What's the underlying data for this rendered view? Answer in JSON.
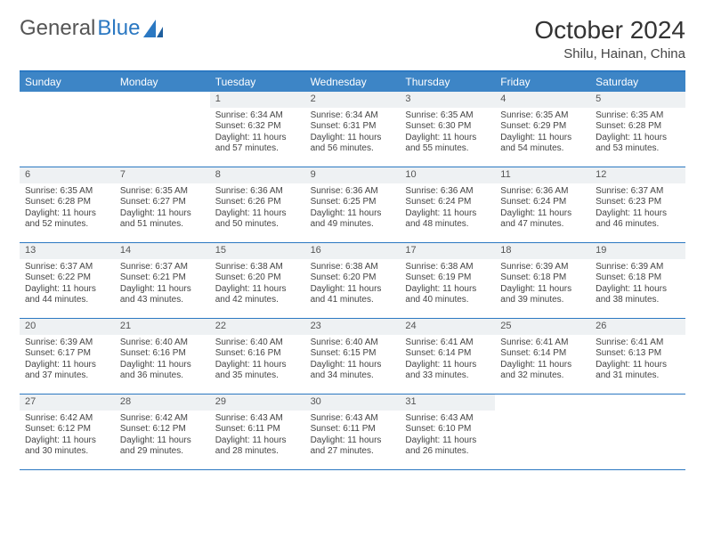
{
  "logo": {
    "text1": "General",
    "text2": "Blue"
  },
  "title": "October 2024",
  "location": "Shilu, Hainan, China",
  "colors": {
    "header_bg": "#3d85c6",
    "border": "#2b78c2",
    "daynum_bg": "#eef1f3",
    "text": "#333333",
    "body_bg": "#ffffff"
  },
  "day_headers": [
    "Sunday",
    "Monday",
    "Tuesday",
    "Wednesday",
    "Thursday",
    "Friday",
    "Saturday"
  ],
  "weeks": [
    [
      {
        "empty": true
      },
      {
        "empty": true
      },
      {
        "day": "1",
        "sunrise": "Sunrise: 6:34 AM",
        "sunset": "Sunset: 6:32 PM",
        "daylight": "Daylight: 11 hours and 57 minutes."
      },
      {
        "day": "2",
        "sunrise": "Sunrise: 6:34 AM",
        "sunset": "Sunset: 6:31 PM",
        "daylight": "Daylight: 11 hours and 56 minutes."
      },
      {
        "day": "3",
        "sunrise": "Sunrise: 6:35 AM",
        "sunset": "Sunset: 6:30 PM",
        "daylight": "Daylight: 11 hours and 55 minutes."
      },
      {
        "day": "4",
        "sunrise": "Sunrise: 6:35 AM",
        "sunset": "Sunset: 6:29 PM",
        "daylight": "Daylight: 11 hours and 54 minutes."
      },
      {
        "day": "5",
        "sunrise": "Sunrise: 6:35 AM",
        "sunset": "Sunset: 6:28 PM",
        "daylight": "Daylight: 11 hours and 53 minutes."
      }
    ],
    [
      {
        "day": "6",
        "sunrise": "Sunrise: 6:35 AM",
        "sunset": "Sunset: 6:28 PM",
        "daylight": "Daylight: 11 hours and 52 minutes."
      },
      {
        "day": "7",
        "sunrise": "Sunrise: 6:35 AM",
        "sunset": "Sunset: 6:27 PM",
        "daylight": "Daylight: 11 hours and 51 minutes."
      },
      {
        "day": "8",
        "sunrise": "Sunrise: 6:36 AM",
        "sunset": "Sunset: 6:26 PM",
        "daylight": "Daylight: 11 hours and 50 minutes."
      },
      {
        "day": "9",
        "sunrise": "Sunrise: 6:36 AM",
        "sunset": "Sunset: 6:25 PM",
        "daylight": "Daylight: 11 hours and 49 minutes."
      },
      {
        "day": "10",
        "sunrise": "Sunrise: 6:36 AM",
        "sunset": "Sunset: 6:24 PM",
        "daylight": "Daylight: 11 hours and 48 minutes."
      },
      {
        "day": "11",
        "sunrise": "Sunrise: 6:36 AM",
        "sunset": "Sunset: 6:24 PM",
        "daylight": "Daylight: 11 hours and 47 minutes."
      },
      {
        "day": "12",
        "sunrise": "Sunrise: 6:37 AM",
        "sunset": "Sunset: 6:23 PM",
        "daylight": "Daylight: 11 hours and 46 minutes."
      }
    ],
    [
      {
        "day": "13",
        "sunrise": "Sunrise: 6:37 AM",
        "sunset": "Sunset: 6:22 PM",
        "daylight": "Daylight: 11 hours and 44 minutes."
      },
      {
        "day": "14",
        "sunrise": "Sunrise: 6:37 AM",
        "sunset": "Sunset: 6:21 PM",
        "daylight": "Daylight: 11 hours and 43 minutes."
      },
      {
        "day": "15",
        "sunrise": "Sunrise: 6:38 AM",
        "sunset": "Sunset: 6:20 PM",
        "daylight": "Daylight: 11 hours and 42 minutes."
      },
      {
        "day": "16",
        "sunrise": "Sunrise: 6:38 AM",
        "sunset": "Sunset: 6:20 PM",
        "daylight": "Daylight: 11 hours and 41 minutes."
      },
      {
        "day": "17",
        "sunrise": "Sunrise: 6:38 AM",
        "sunset": "Sunset: 6:19 PM",
        "daylight": "Daylight: 11 hours and 40 minutes."
      },
      {
        "day": "18",
        "sunrise": "Sunrise: 6:39 AM",
        "sunset": "Sunset: 6:18 PM",
        "daylight": "Daylight: 11 hours and 39 minutes."
      },
      {
        "day": "19",
        "sunrise": "Sunrise: 6:39 AM",
        "sunset": "Sunset: 6:18 PM",
        "daylight": "Daylight: 11 hours and 38 minutes."
      }
    ],
    [
      {
        "day": "20",
        "sunrise": "Sunrise: 6:39 AM",
        "sunset": "Sunset: 6:17 PM",
        "daylight": "Daylight: 11 hours and 37 minutes."
      },
      {
        "day": "21",
        "sunrise": "Sunrise: 6:40 AM",
        "sunset": "Sunset: 6:16 PM",
        "daylight": "Daylight: 11 hours and 36 minutes."
      },
      {
        "day": "22",
        "sunrise": "Sunrise: 6:40 AM",
        "sunset": "Sunset: 6:16 PM",
        "daylight": "Daylight: 11 hours and 35 minutes."
      },
      {
        "day": "23",
        "sunrise": "Sunrise: 6:40 AM",
        "sunset": "Sunset: 6:15 PM",
        "daylight": "Daylight: 11 hours and 34 minutes."
      },
      {
        "day": "24",
        "sunrise": "Sunrise: 6:41 AM",
        "sunset": "Sunset: 6:14 PM",
        "daylight": "Daylight: 11 hours and 33 minutes."
      },
      {
        "day": "25",
        "sunrise": "Sunrise: 6:41 AM",
        "sunset": "Sunset: 6:14 PM",
        "daylight": "Daylight: 11 hours and 32 minutes."
      },
      {
        "day": "26",
        "sunrise": "Sunrise: 6:41 AM",
        "sunset": "Sunset: 6:13 PM",
        "daylight": "Daylight: 11 hours and 31 minutes."
      }
    ],
    [
      {
        "day": "27",
        "sunrise": "Sunrise: 6:42 AM",
        "sunset": "Sunset: 6:12 PM",
        "daylight": "Daylight: 11 hours and 30 minutes."
      },
      {
        "day": "28",
        "sunrise": "Sunrise: 6:42 AM",
        "sunset": "Sunset: 6:12 PM",
        "daylight": "Daylight: 11 hours and 29 minutes."
      },
      {
        "day": "29",
        "sunrise": "Sunrise: 6:43 AM",
        "sunset": "Sunset: 6:11 PM",
        "daylight": "Daylight: 11 hours and 28 minutes."
      },
      {
        "day": "30",
        "sunrise": "Sunrise: 6:43 AM",
        "sunset": "Sunset: 6:11 PM",
        "daylight": "Daylight: 11 hours and 27 minutes."
      },
      {
        "day": "31",
        "sunrise": "Sunrise: 6:43 AM",
        "sunset": "Sunset: 6:10 PM",
        "daylight": "Daylight: 11 hours and 26 minutes."
      },
      {
        "empty": true
      },
      {
        "empty": true
      }
    ]
  ]
}
